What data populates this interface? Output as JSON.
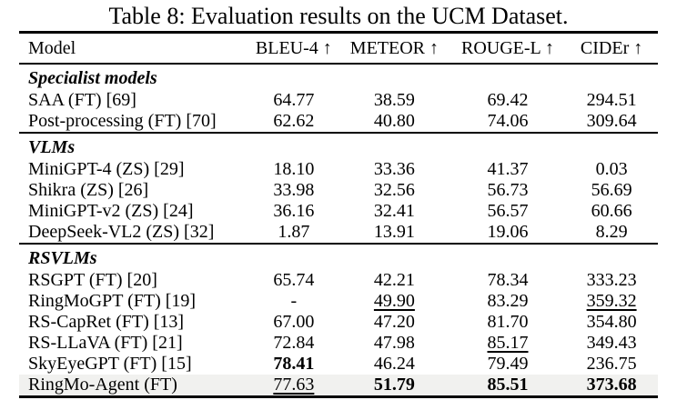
{
  "caption": "Table 8: Evaluation results on the UCM Dataset.",
  "colors": {
    "page_bg": "#ffffff",
    "text": "#000000",
    "rule": "#000000",
    "highlight_row_bg": "#f1f1ef"
  },
  "table": {
    "columns": [
      "Model",
      "BLEU-4 ↑",
      "METEOR ↑",
      "ROUGE-L ↑",
      "CIDEr ↑"
    ],
    "sections": [
      {
        "label": "Specialist models",
        "rows": [
          {
            "model": "SAA (FT) [69]",
            "highlight": false,
            "cells": [
              {
                "text": "64.77",
                "style": "plain"
              },
              {
                "text": "38.59",
                "style": "plain"
              },
              {
                "text": "69.42",
                "style": "plain"
              },
              {
                "text": "294.51",
                "style": "plain"
              }
            ]
          },
          {
            "model": "Post-processing (FT) [70]",
            "highlight": false,
            "cells": [
              {
                "text": "62.62",
                "style": "plain"
              },
              {
                "text": "40.80",
                "style": "plain"
              },
              {
                "text": "74.06",
                "style": "plain"
              },
              {
                "text": "309.64",
                "style": "plain"
              }
            ]
          }
        ]
      },
      {
        "label": "VLMs",
        "rows": [
          {
            "model": "MiniGPT-4 (ZS) [29]",
            "highlight": false,
            "cells": [
              {
                "text": "18.10",
                "style": "plain"
              },
              {
                "text": "33.36",
                "style": "plain"
              },
              {
                "text": "41.37",
                "style": "plain"
              },
              {
                "text": "0.03",
                "style": "plain"
              }
            ]
          },
          {
            "model": "Shikra (ZS) [26]",
            "highlight": false,
            "cells": [
              {
                "text": "33.98",
                "style": "plain"
              },
              {
                "text": "32.56",
                "style": "plain"
              },
              {
                "text": "56.73",
                "style": "plain"
              },
              {
                "text": "56.69",
                "style": "plain"
              }
            ]
          },
          {
            "model": "MiniGPT-v2 (ZS) [24]",
            "highlight": false,
            "cells": [
              {
                "text": "36.16",
                "style": "plain"
              },
              {
                "text": "32.41",
                "style": "plain"
              },
              {
                "text": "56.57",
                "style": "plain"
              },
              {
                "text": "60.66",
                "style": "plain"
              }
            ]
          },
          {
            "model": "DeepSeek-VL2 (ZS) [32]",
            "highlight": false,
            "cells": [
              {
                "text": "1.87",
                "style": "plain"
              },
              {
                "text": "13.91",
                "style": "plain"
              },
              {
                "text": "19.06",
                "style": "plain"
              },
              {
                "text": "8.29",
                "style": "plain"
              }
            ]
          }
        ]
      },
      {
        "label": "RSVLMs",
        "rows": [
          {
            "model": "RSGPT (FT) [20]",
            "highlight": false,
            "cells": [
              {
                "text": "65.74",
                "style": "plain"
              },
              {
                "text": "42.21",
                "style": "plain"
              },
              {
                "text": "78.34",
                "style": "plain"
              },
              {
                "text": "333.23",
                "style": "plain"
              }
            ]
          },
          {
            "model": "RingMoGPT (FT) [19]",
            "highlight": false,
            "cells": [
              {
                "text": "-",
                "style": "plain"
              },
              {
                "text": "49.90",
                "style": "underline"
              },
              {
                "text": "83.29",
                "style": "plain"
              },
              {
                "text": "359.32",
                "style": "underline"
              }
            ]
          },
          {
            "model": "RS-CapRet (FT) [13]",
            "highlight": false,
            "cells": [
              {
                "text": "67.00",
                "style": "plain"
              },
              {
                "text": "47.20",
                "style": "plain"
              },
              {
                "text": "81.70",
                "style": "plain"
              },
              {
                "text": "354.80",
                "style": "plain"
              }
            ]
          },
          {
            "model": "RS-LLaVA (FT) [21]",
            "highlight": false,
            "cells": [
              {
                "text": "72.84",
                "style": "plain"
              },
              {
                "text": "47.98",
                "style": "plain"
              },
              {
                "text": "85.17",
                "style": "underline"
              },
              {
                "text": "349.43",
                "style": "plain"
              }
            ]
          },
          {
            "model": "SkyEyeGPT (FT) [15]",
            "highlight": false,
            "cells": [
              {
                "text": "78.41",
                "style": "bold"
              },
              {
                "text": "46.24",
                "style": "plain"
              },
              {
                "text": "79.49",
                "style": "plain"
              },
              {
                "text": "236.75",
                "style": "plain"
              }
            ]
          },
          {
            "model": "RingMo-Agent (FT)",
            "highlight": true,
            "cells": [
              {
                "text": "77.63",
                "style": "underline"
              },
              {
                "text": "51.79",
                "style": "bold"
              },
              {
                "text": "85.51",
                "style": "bold"
              },
              {
                "text": "373.68",
                "style": "bold"
              }
            ]
          }
        ]
      }
    ]
  }
}
